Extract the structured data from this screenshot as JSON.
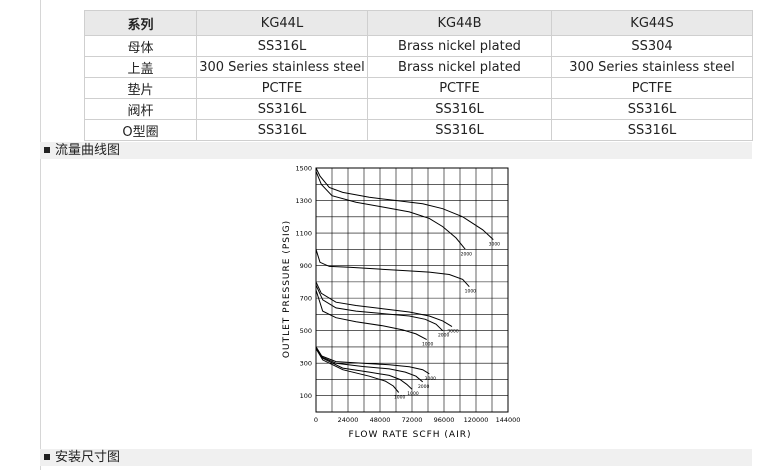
{
  "spec_table": {
    "headers": [
      "系列",
      "KG44L",
      "KG44B",
      "KG44S"
    ],
    "rows": [
      [
        "母体",
        "SS316L",
        "Brass nickel plated",
        "SS304"
      ],
      [
        "上盖",
        "300 Series stainless steel",
        "Brass nickel plated",
        "300 Series stainless steel"
      ],
      [
        "垫片",
        "PCTFE",
        "PCTFE",
        "PCTFE"
      ],
      [
        "阀杆",
        "SS316L",
        "SS316L",
        "SS316L"
      ],
      [
        "O型圈",
        "SS316L",
        "SS316L",
        "SS316L"
      ]
    ]
  },
  "sections": {
    "flow_curve": "流量曲线图",
    "install_dims": "安装尺寸图"
  },
  "chart_data": {
    "type": "line",
    "xlabel": "FLOW RATE SCFH (AIR)",
    "ylabel": "OUTLET PRESSURE (PSIG)",
    "xlim": [
      0,
      144000
    ],
    "ylim": [
      0,
      1500
    ],
    "x_ticks": [
      "0",
      "24000",
      "48000",
      "72000",
      "96000",
      "120000",
      "144000"
    ],
    "y_ticks": [
      "100",
      "300",
      "500",
      "700",
      "900",
      "1100",
      "1300",
      "1500"
    ],
    "grid": true,
    "series": [
      {
        "name": "3000",
        "x": [
          0,
          3000,
          10000,
          20000,
          40000,
          60000,
          80000,
          95000,
          110000,
          125000,
          133000
        ],
        "y": [
          1500,
          1450,
          1380,
          1350,
          1320,
          1300,
          1280,
          1250,
          1200,
          1120,
          1060
        ]
      },
      {
        "name": "2000",
        "x": [
          0,
          4000,
          12000,
          30000,
          50000,
          70000,
          85000,
          95000,
          105000,
          112000
        ],
        "y": [
          1480,
          1400,
          1330,
          1290,
          1260,
          1230,
          1190,
          1140,
          1070,
          1000
        ]
      },
      {
        "name": "1000",
        "x": [
          0,
          3000,
          10000,
          25000,
          45000,
          65000,
          85000,
          100000,
          110000,
          115000
        ],
        "y": [
          1000,
          920,
          895,
          890,
          880,
          870,
          860,
          845,
          815,
          770
        ]
      },
      {
        "name": "3000",
        "x": [
          0,
          4000,
          15000,
          30000,
          50000,
          70000,
          85000,
          95000,
          102000
        ],
        "y": [
          800,
          730,
          675,
          655,
          635,
          615,
          590,
          560,
          525
        ]
      },
      {
        "name": "2000",
        "x": [
          0,
          5000,
          15000,
          30000,
          50000,
          70000,
          82000,
          90000,
          95000
        ],
        "y": [
          780,
          690,
          640,
          620,
          605,
          590,
          570,
          540,
          500
        ]
      },
      {
        "name": "1000",
        "x": [
          0,
          5000,
          15000,
          30000,
          50000,
          65000,
          75000,
          83000
        ],
        "y": [
          750,
          620,
          580,
          555,
          530,
          505,
          480,
          445
        ]
      },
      {
        "name": "3000",
        "x": [
          0,
          4000,
          15000,
          35000,
          55000,
          70000,
          80000,
          85000
        ],
        "y": [
          400,
          345,
          310,
          300,
          290,
          278,
          260,
          235
        ]
      },
      {
        "name": "2000",
        "x": [
          0,
          5000,
          15000,
          35000,
          55000,
          67000,
          75000,
          80000
        ],
        "y": [
          400,
          335,
          300,
          280,
          265,
          245,
          220,
          185
        ]
      },
      {
        "name": "1000",
        "x": [
          0,
          5000,
          20000,
          40000,
          55000,
          63000,
          68000,
          72000
        ],
        "y": [
          395,
          330,
          270,
          245,
          225,
          200,
          170,
          140
        ]
      },
      {
        "name": "1000",
        "x": [
          0,
          5000,
          20000,
          40000,
          52000,
          58000,
          62000
        ],
        "y": [
          390,
          320,
          260,
          220,
          190,
          160,
          120
        ]
      }
    ]
  }
}
